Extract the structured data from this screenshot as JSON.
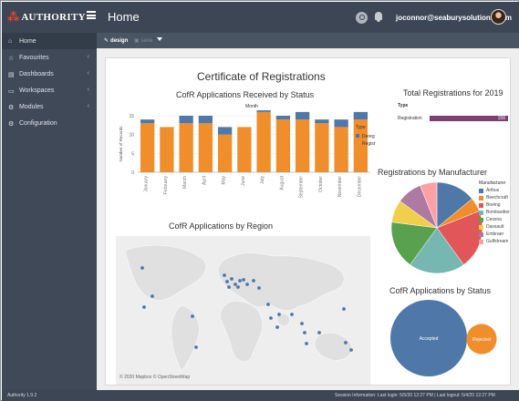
{
  "header": {
    "logo_text": "AUTHORITY",
    "logo_mark": "⁂",
    "title": "Home",
    "user_email": "joconnor@seaburysolutions.com"
  },
  "sidebar": {
    "items": [
      {
        "label": "Home",
        "icon": "home-icon",
        "has_chevron": false
      },
      {
        "label": "Favourites",
        "icon": "star-icon",
        "has_chevron": true
      },
      {
        "label": "Dashboards",
        "icon": "dashboard-icon",
        "has_chevron": true
      },
      {
        "label": "Workspaces",
        "icon": "workspace-icon",
        "has_chevron": true
      },
      {
        "label": "Modules",
        "icon": "modules-icon",
        "has_chevron": true
      },
      {
        "label": "Configuration",
        "icon": "configuration-icon",
        "has_chevron": false
      }
    ]
  },
  "toolbar": {
    "design_label": "design",
    "save_label": "save"
  },
  "report": {
    "title": "Certificate of Registrations",
    "status_chart_title": "CofR Applications Received by Status",
    "total_title": "Total Registrations for 2019",
    "manufacturer_title": "Registrations by Manufacturer",
    "region_title": "CofR Applications by Region",
    "pie_status_title": "CofR Applications by Status",
    "map_credit": "© 2020 Mapbox  © OpenStreetMap"
  },
  "chart_data": [
    {
      "type": "bar",
      "title": "CofR Applications Received by Status",
      "xlabel": "Month",
      "ylabel": "Number of Records",
      "legend_title": "Type",
      "categories": [
        "January",
        "February",
        "March",
        "April",
        "May",
        "June",
        "July",
        "August",
        "September",
        "October",
        "November",
        "December"
      ],
      "series": [
        {
          "name": "Deregistration",
          "color": "#4f78a8",
          "values": [
            1,
            0,
            2,
            2,
            2,
            0,
            1,
            1,
            2,
            1,
            2,
            2
          ]
        },
        {
          "name": "Registration",
          "color": "#ef8e2b",
          "values": [
            13,
            12,
            13,
            13,
            10,
            12,
            16,
            14,
            14,
            13,
            12,
            14
          ]
        }
      ],
      "ylim": [
        0,
        15
      ],
      "yticks": [
        0,
        5,
        10,
        15
      ],
      "legend": "right"
    },
    {
      "type": "bar",
      "title": "Total Registrations for 2019",
      "legend_title": "Type",
      "categories": [
        "Registration"
      ],
      "values": [
        156
      ],
      "color": "#7d3e73"
    },
    {
      "type": "pie",
      "title": "Registrations by Manufacturer",
      "legend_title": "Manufacturer",
      "labels": [
        "Airbus",
        "Beechcraft",
        "Boeing",
        "Bombardier",
        "Cessna",
        "Dassault",
        "Embraer",
        "Gulfstream"
      ],
      "values": [
        14,
        5,
        21,
        20,
        17,
        8,
        9,
        6
      ],
      "colors": [
        "#4f78a8",
        "#ef8e2b",
        "#e15659",
        "#76b7b2",
        "#59a14f",
        "#f0cf4c",
        "#ae7aa1",
        "#ffa0a6"
      ],
      "legend": "right"
    },
    {
      "type": "pie",
      "title": "CofR Applications by Status",
      "labels": [
        "Accepted",
        "Rejected"
      ],
      "values": [
        135,
        21
      ],
      "colors": [
        "#4f78a8",
        "#ef8e2b"
      ]
    }
  ],
  "colors": {
    "topbar": "#3c4654",
    "sidebar": "#3f4958",
    "toolbar": "#4a5563",
    "registration": "#ef8e2b",
    "deregistration": "#4f78a8",
    "total_bar": "#7d3e73"
  },
  "footer": {
    "version": "Authority 1.9.2",
    "session": "Session Information: Last login: 5/5/20 12:27 PM | Last logout: 5/4/20 12:27 PM"
  }
}
